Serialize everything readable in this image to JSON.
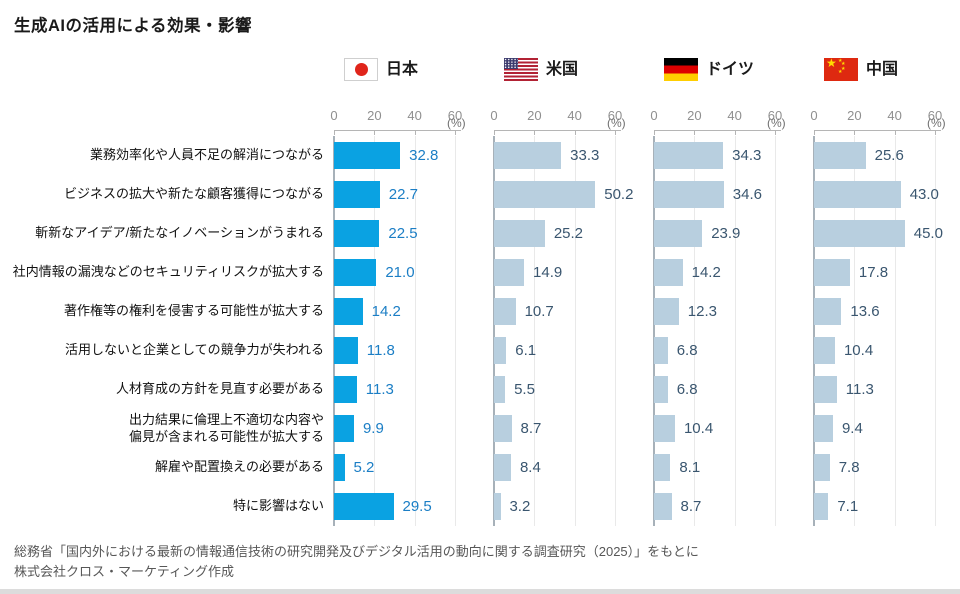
{
  "page_title": "生成AIの活用による効果・影響",
  "chart_data": {
    "type": "bar",
    "orientation": "horizontal",
    "title": "生成AIの活用による効果・影響",
    "unit_label": "(%)",
    "xlim": [
      0,
      60
    ],
    "x_ticks": [
      0,
      20,
      40,
      60
    ],
    "grid": true,
    "legend_position": "top",
    "categories": [
      "業務効率化や人員不足の解消につながる",
      "ビジネスの拡大や新たな顧客獲得につながる",
      "斬新なアイデア/新たなイノベーションがうまれる",
      "社内情報の漏洩などのセキュリティリスクが拡大する",
      "著作権等の権利を侵害する可能性が拡大する",
      "活用しないと企業としての競争力が失われる",
      "人材育成の方針を見直す必要がある",
      "出力結果に倫理上不適切な内容や\n偏見が含まれる可能性が拡大する",
      "解雇や配置換えの必要がある",
      "特に影響はない"
    ],
    "series": [
      {
        "name": "日本",
        "flag": "jp",
        "values": [
          32.8,
          22.7,
          22.5,
          21.0,
          14.2,
          11.8,
          11.3,
          9.9,
          5.2,
          29.5
        ],
        "bar_color": "#0aa2e2",
        "value_color": "#1b7ec5"
      },
      {
        "name": "米国",
        "flag": "us",
        "values": [
          33.3,
          50.2,
          25.2,
          14.9,
          10.7,
          6.1,
          5.5,
          8.7,
          8.4,
          3.2
        ],
        "bar_color": "#b8cfdf",
        "value_color": "#3a566f"
      },
      {
        "name": "ドイツ",
        "flag": "de",
        "values": [
          34.3,
          34.6,
          23.9,
          14.2,
          12.3,
          6.8,
          6.8,
          10.4,
          8.1,
          8.7
        ],
        "bar_color": "#b8cfdf",
        "value_color": "#3a566f"
      },
      {
        "name": "中国",
        "flag": "cn",
        "values": [
          25.6,
          43.0,
          45.0,
          17.8,
          13.6,
          10.4,
          11.3,
          9.4,
          7.8,
          7.1
        ],
        "bar_color": "#b8cfdf",
        "value_color": "#3a566f"
      }
    ]
  },
  "source_lines": [
    "総務省「国内外における最新の情報通信技術の研究開発及びデジタル活用の動向に関する調査研究（2025）」をもとに",
    "株式会社クロス・マーケティング作成"
  ],
  "colors": {
    "gridline": "#e9e9e9",
    "axis": "#b5b5b5",
    "category_text": "#111111",
    "tick_text": "#8f8f8f",
    "source_text": "#575757"
  }
}
